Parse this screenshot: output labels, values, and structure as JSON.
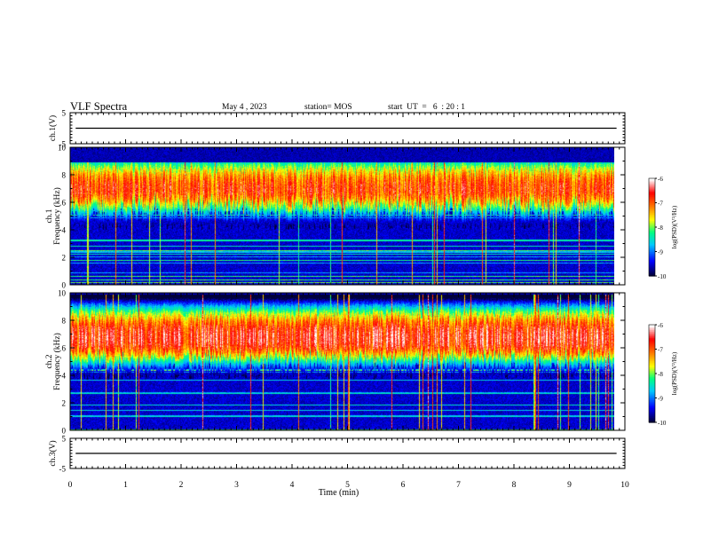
{
  "header": {
    "title": "VLF Spectra",
    "date": "May 4 , 2023",
    "station": "station= MOS",
    "start": "start  UT  =   6  : 20 : 1"
  },
  "chart_data": [
    {
      "type": "line",
      "name": "ch1-waveform",
      "ylabel": "ch.1(V)",
      "ylim": [
        -5,
        5
      ],
      "yticks": [
        "5",
        "-5"
      ],
      "x": [
        0,
        10
      ],
      "values": [
        0,
        0
      ]
    },
    {
      "type": "heatmap",
      "name": "ch1-spectrogram",
      "ylabel": "ch.1\nFrequency (kHz)",
      "ylim": [
        0,
        10
      ],
      "yticks": [
        "10",
        "8",
        "6",
        "4",
        "2",
        "0"
      ],
      "xlim": [
        0,
        9.8
      ],
      "band_upper_khz": [
        0.2,
        8.9
      ],
      "band_core_khz": [
        5.2,
        8.7
      ],
      "colorbar": {
        "label": "log(PSD)(V²/Hz)",
        "ticks": [
          "-6",
          "-7",
          "-8",
          "-9",
          "-10"
        ],
        "range": [
          -10,
          -6
        ]
      }
    },
    {
      "type": "heatmap",
      "name": "ch2-spectrogram",
      "ylabel": "ch.2\nFrequency (kHz)",
      "ylim": [
        0,
        10
      ],
      "yticks": [
        "10",
        "8",
        "6",
        "4",
        "2",
        "0"
      ],
      "xlim": [
        0,
        9.8
      ],
      "band_core_khz": [
        5.0,
        8.5
      ],
      "colorbar": {
        "label": "log(PSD)(V²/Hz)",
        "ticks": [
          "-6",
          "-7",
          "-8",
          "-9",
          "-10"
        ],
        "range": [
          -10,
          -6
        ]
      }
    },
    {
      "type": "line",
      "name": "ch3-waveform",
      "ylabel": "ch.3(V)",
      "ylim": [
        -5,
        5
      ],
      "yticks": [
        "5",
        "-5"
      ],
      "x": [
        0,
        10
      ],
      "values": [
        0,
        0
      ]
    }
  ],
  "xaxis": {
    "label": "Time  (min)",
    "range": [
      0,
      10
    ],
    "ticks": [
      "0",
      "1",
      "2",
      "3",
      "4",
      "5",
      "6",
      "7",
      "8",
      "9",
      "10"
    ]
  },
  "colors": {
    "scale": [
      "#00003a",
      "#0000ff",
      "#00c8ff",
      "#00ff80",
      "#ffff00",
      "#ff7800",
      "#ff0000",
      "#ffffff"
    ]
  }
}
